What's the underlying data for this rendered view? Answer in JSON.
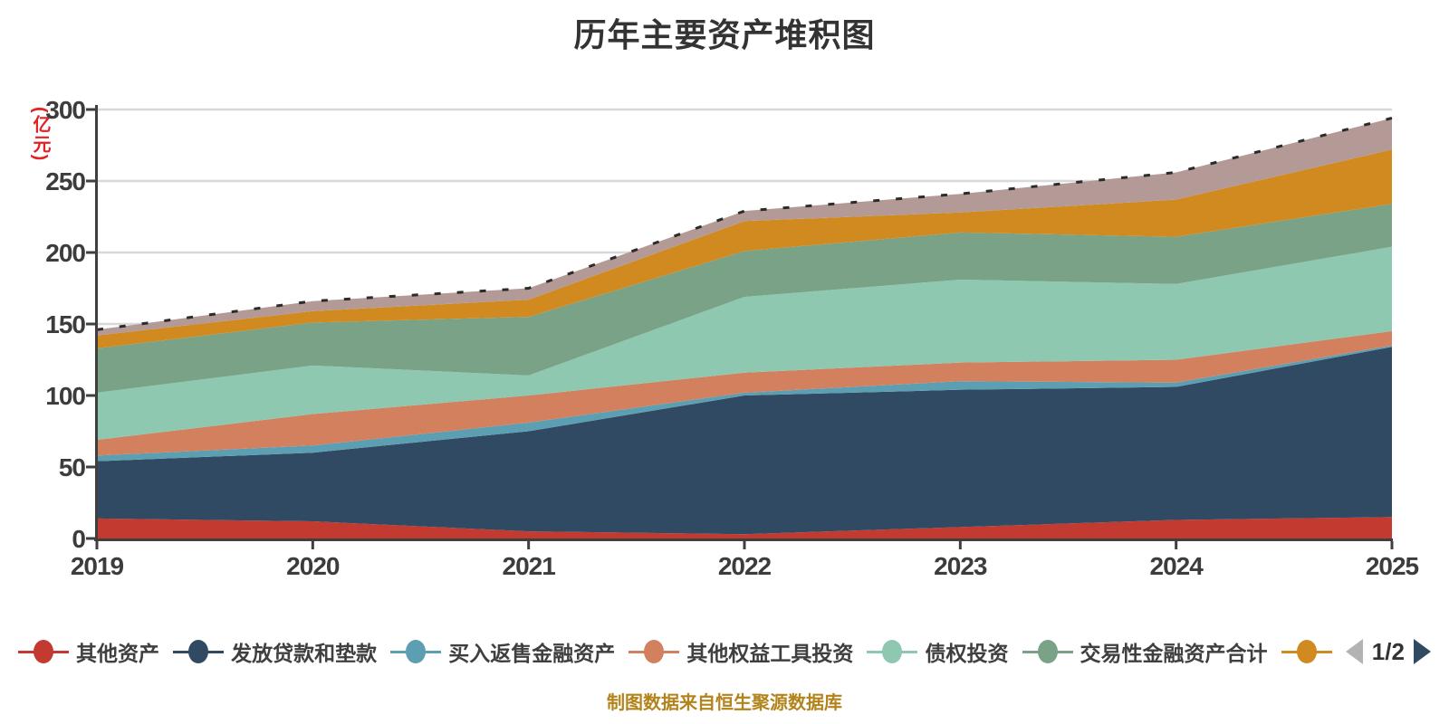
{
  "title": "历年主要资产堆积图",
  "caption": "制图数据来自恒生聚源数据库",
  "caption_color": "#b3831c",
  "y_axis": {
    "unit_label": "(亿元)",
    "unit_color": "#e02222",
    "tick_labels": [
      "0",
      "50",
      "100",
      "150",
      "200",
      "250",
      "300"
    ]
  },
  "x_axis": {
    "tick_labels": [
      "2019",
      "2020",
      "2021",
      "2022",
      "2023",
      "2024",
      "2025"
    ]
  },
  "legend": {
    "items": [
      {
        "label": "其他资产",
        "color": "#c23a30"
      },
      {
        "label": "发放贷款和垫款",
        "color": "#2f4a62"
      },
      {
        "label": "买入返售金融资产",
        "color": "#5d9fb2"
      },
      {
        "label": "其他权益工具投资",
        "color": "#d3805f"
      },
      {
        "label": "债权投资",
        "color": "#8fc8b0"
      },
      {
        "label": "交易性金融资产合计",
        "color": "#7aa287"
      },
      {
        "label": "",
        "color": "#d18a20"
      }
    ],
    "pager": {
      "text": "1/2",
      "prev_color": "#b3b3b3",
      "next_color": "#2f4a62"
    }
  },
  "chart_data": {
    "type": "area",
    "stacked": true,
    "title": "历年主要资产堆积图",
    "xlabel": "",
    "ylabel": "(亿元)",
    "categories": [
      "2019",
      "2020",
      "2021",
      "2022",
      "2023",
      "2024",
      "2025"
    ],
    "ylim": [
      0,
      300
    ],
    "y_tick_step": 50,
    "grid": true,
    "grid_color": "#d8d8d8",
    "axis_color": "#3f3f3f",
    "legend_position": "bottom",
    "series": [
      {
        "name": "其他资产",
        "color": "#c23a30",
        "values": [
          14,
          12,
          5,
          3,
          8,
          13,
          15
        ]
      },
      {
        "name": "发放贷款和垫款",
        "color": "#2f4a62",
        "values": [
          40,
          48,
          70,
          97,
          96,
          93,
          119
        ]
      },
      {
        "name": "买入返售金融资产",
        "color": "#5d9fb2",
        "values": [
          4,
          5,
          6,
          2,
          6,
          3,
          1
        ]
      },
      {
        "name": "其他权益工具投资",
        "color": "#d3805f",
        "values": [
          11,
          22,
          19,
          14,
          13,
          16,
          10
        ]
      },
      {
        "name": "债权投资",
        "color": "#8fc8b0",
        "values": [
          33,
          34,
          14,
          53,
          58,
          53,
          59
        ]
      },
      {
        "name": "交易性金融资产合计",
        "color": "#7aa287",
        "values": [
          31,
          30,
          41,
          32,
          33,
          33,
          30
        ]
      },
      {
        "name": "",
        "color": "#d18a20",
        "values": [
          9,
          8,
          12,
          21,
          14,
          26,
          38
        ]
      },
      {
        "name": "",
        "color": "#b49a96",
        "values": [
          4,
          7,
          8,
          7,
          13,
          19,
          22
        ]
      }
    ],
    "total_line": {
      "style": "dashed",
      "color": "#2b2b2b",
      "totals": [
        146,
        166,
        175,
        229,
        241,
        256,
        294
      ]
    }
  }
}
